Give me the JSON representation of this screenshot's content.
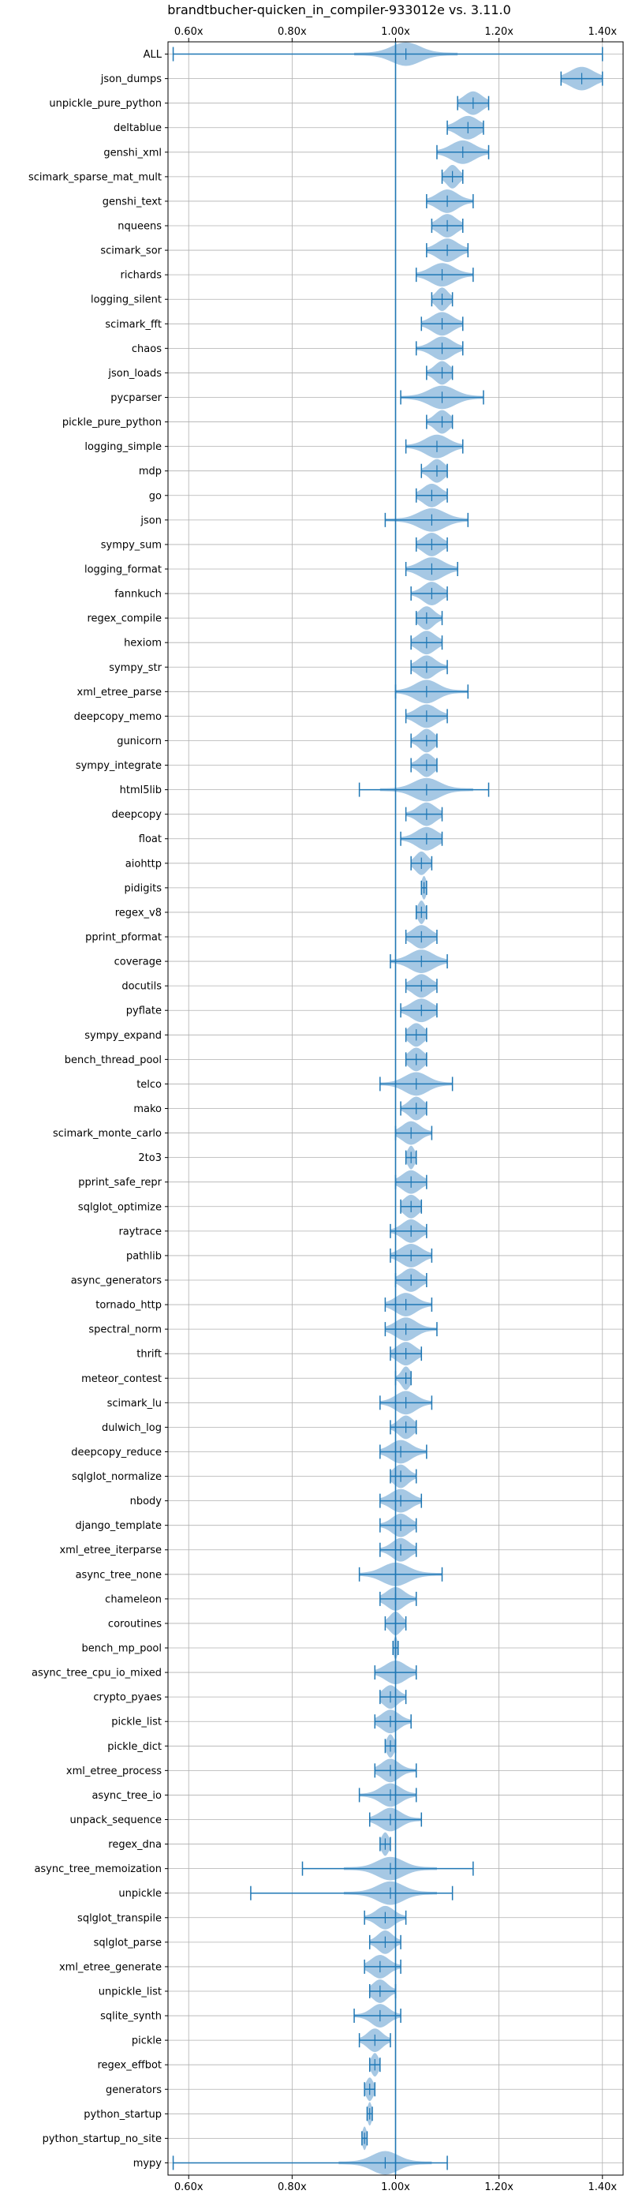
{
  "chart_data": {
    "type": "violin",
    "orientation": "horizontal",
    "title": "brandtbucher-quicken_in_compiler-933012e vs. 3.11.0",
    "x_axis_ticks": [
      "0.60x",
      "0.80x",
      "1.00x",
      "1.20x",
      "1.40x"
    ],
    "x_tick_values": [
      0.6,
      0.8,
      1.0,
      1.2,
      1.4
    ],
    "xlim": [
      0.56,
      1.44
    ],
    "reference_line": 1.0,
    "tick_position": "top-and-bottom",
    "grid": true,
    "colors": {
      "violin_fill": "#a6c8e4",
      "stroke": "#1f77b4",
      "grid": "#b0b0b0"
    },
    "benchmarks": [
      {
        "name": "ALL",
        "min": 0.57,
        "max": 1.4,
        "median": 1.02,
        "w": 0.05
      },
      {
        "name": "json_dumps",
        "min": 1.32,
        "max": 1.4,
        "median": 1.36,
        "w": 0.04
      },
      {
        "name": "unpickle_pure_python",
        "min": 1.12,
        "max": 1.18,
        "median": 1.15,
        "w": 0.03
      },
      {
        "name": "deltablue",
        "min": 1.1,
        "max": 1.17,
        "median": 1.14,
        "w": 0.035
      },
      {
        "name": "genshi_xml",
        "min": 1.08,
        "max": 1.18,
        "median": 1.13,
        "w": 0.04
      },
      {
        "name": "scimark_sparse_mat_mult",
        "min": 1.09,
        "max": 1.13,
        "median": 1.11,
        "w": 0.02
      },
      {
        "name": "genshi_text",
        "min": 1.06,
        "max": 1.15,
        "median": 1.1,
        "w": 0.035
      },
      {
        "name": "nqueens",
        "min": 1.07,
        "max": 1.13,
        "median": 1.1,
        "w": 0.03
      },
      {
        "name": "scimark_sor",
        "min": 1.06,
        "max": 1.14,
        "median": 1.1,
        "w": 0.035
      },
      {
        "name": "richards",
        "min": 1.04,
        "max": 1.15,
        "median": 1.09,
        "w": 0.04
      },
      {
        "name": "logging_silent",
        "min": 1.07,
        "max": 1.11,
        "median": 1.09,
        "w": 0.02
      },
      {
        "name": "scimark_fft",
        "min": 1.05,
        "max": 1.13,
        "median": 1.09,
        "w": 0.035
      },
      {
        "name": "chaos",
        "min": 1.04,
        "max": 1.13,
        "median": 1.09,
        "w": 0.035
      },
      {
        "name": "json_loads",
        "min": 1.06,
        "max": 1.11,
        "median": 1.09,
        "w": 0.025
      },
      {
        "name": "pycparser",
        "min": 1.01,
        "max": 1.17,
        "median": 1.09,
        "w": 0.045
      },
      {
        "name": "pickle_pure_python",
        "min": 1.06,
        "max": 1.11,
        "median": 1.09,
        "w": 0.025
      },
      {
        "name": "logging_simple",
        "min": 1.02,
        "max": 1.13,
        "median": 1.08,
        "w": 0.04
      },
      {
        "name": "mdp",
        "min": 1.05,
        "max": 1.1,
        "median": 1.08,
        "w": 0.025
      },
      {
        "name": "go",
        "min": 1.04,
        "max": 1.1,
        "median": 1.07,
        "w": 0.03
      },
      {
        "name": "json",
        "min": 0.98,
        "max": 1.14,
        "median": 1.07,
        "w": 0.045
      },
      {
        "name": "sympy_sum",
        "min": 1.04,
        "max": 1.1,
        "median": 1.07,
        "w": 0.03
      },
      {
        "name": "logging_format",
        "min": 1.02,
        "max": 1.12,
        "median": 1.07,
        "w": 0.04
      },
      {
        "name": "fannkuch",
        "min": 1.03,
        "max": 1.1,
        "median": 1.07,
        "w": 0.03
      },
      {
        "name": "regex_compile",
        "min": 1.04,
        "max": 1.09,
        "median": 1.06,
        "w": 0.025
      },
      {
        "name": "hexiom",
        "min": 1.03,
        "max": 1.09,
        "median": 1.06,
        "w": 0.03
      },
      {
        "name": "sympy_str",
        "min": 1.03,
        "max": 1.1,
        "median": 1.06,
        "w": 0.03
      },
      {
        "name": "xml_etree_parse",
        "min": 1.0,
        "max": 1.14,
        "median": 1.06,
        "w": 0.04
      },
      {
        "name": "deepcopy_memo",
        "min": 1.02,
        "max": 1.1,
        "median": 1.06,
        "w": 0.035
      },
      {
        "name": "gunicorn",
        "min": 1.03,
        "max": 1.08,
        "median": 1.06,
        "w": 0.025
      },
      {
        "name": "sympy_integrate",
        "min": 1.03,
        "max": 1.08,
        "median": 1.06,
        "w": 0.025
      },
      {
        "name": "html5lib",
        "min": 0.93,
        "max": 1.18,
        "median": 1.06,
        "w": 0.045
      },
      {
        "name": "deepcopy",
        "min": 1.02,
        "max": 1.09,
        "median": 1.06,
        "w": 0.03
      },
      {
        "name": "float",
        "min": 1.01,
        "max": 1.09,
        "median": 1.06,
        "w": 0.035
      },
      {
        "name": "aiohttp",
        "min": 1.03,
        "max": 1.07,
        "median": 1.05,
        "w": 0.02
      },
      {
        "name": "pidigits",
        "min": 1.05,
        "max": 1.06,
        "median": 1.055,
        "w": 0.008
      },
      {
        "name": "regex_v8",
        "min": 1.04,
        "max": 1.06,
        "median": 1.05,
        "w": 0.012
      },
      {
        "name": "pprint_pformat",
        "min": 1.02,
        "max": 1.08,
        "median": 1.05,
        "w": 0.03
      },
      {
        "name": "coverage",
        "min": 0.99,
        "max": 1.1,
        "median": 1.05,
        "w": 0.04
      },
      {
        "name": "docutils",
        "min": 1.02,
        "max": 1.08,
        "median": 1.05,
        "w": 0.03
      },
      {
        "name": "pyflate",
        "min": 1.01,
        "max": 1.08,
        "median": 1.05,
        "w": 0.035
      },
      {
        "name": "sympy_expand",
        "min": 1.02,
        "max": 1.06,
        "median": 1.04,
        "w": 0.025
      },
      {
        "name": "bench_thread_pool",
        "min": 1.02,
        "max": 1.06,
        "median": 1.04,
        "w": 0.025
      },
      {
        "name": "telco",
        "min": 0.97,
        "max": 1.11,
        "median": 1.04,
        "w": 0.04
      },
      {
        "name": "mako",
        "min": 1.01,
        "max": 1.06,
        "median": 1.04,
        "w": 0.025
      },
      {
        "name": "scimark_monte_carlo",
        "min": 1.0,
        "max": 1.07,
        "median": 1.03,
        "w": 0.03
      },
      {
        "name": "2to3",
        "min": 1.02,
        "max": 1.04,
        "median": 1.03,
        "w": 0.012
      },
      {
        "name": "pprint_safe_repr",
        "min": 1.0,
        "max": 1.06,
        "median": 1.03,
        "w": 0.03
      },
      {
        "name": "sqlglot_optimize",
        "min": 1.01,
        "max": 1.05,
        "median": 1.03,
        "w": 0.025
      },
      {
        "name": "raytrace",
        "min": 0.99,
        "max": 1.06,
        "median": 1.03,
        "w": 0.03
      },
      {
        "name": "pathlib",
        "min": 0.99,
        "max": 1.07,
        "median": 1.03,
        "w": 0.035
      },
      {
        "name": "async_generators",
        "min": 1.0,
        "max": 1.06,
        "median": 1.03,
        "w": 0.03
      },
      {
        "name": "tornado_http",
        "min": 0.98,
        "max": 1.07,
        "median": 1.02,
        "w": 0.035
      },
      {
        "name": "spectral_norm",
        "min": 0.98,
        "max": 1.08,
        "median": 1.02,
        "w": 0.035
      },
      {
        "name": "thrift",
        "min": 0.99,
        "max": 1.05,
        "median": 1.02,
        "w": 0.03
      },
      {
        "name": "meteor_contest",
        "min": 1.0,
        "max": 1.03,
        "median": 1.02,
        "w": 0.015
      },
      {
        "name": "scimark_lu",
        "min": 0.97,
        "max": 1.07,
        "median": 1.02,
        "w": 0.035
      },
      {
        "name": "dulwich_log",
        "min": 0.99,
        "max": 1.04,
        "median": 1.02,
        "w": 0.025
      },
      {
        "name": "deepcopy_reduce",
        "min": 0.97,
        "max": 1.06,
        "median": 1.01,
        "w": 0.035
      },
      {
        "name": "sqlglot_normalize",
        "min": 0.99,
        "max": 1.04,
        "median": 1.01,
        "w": 0.025
      },
      {
        "name": "nbody",
        "min": 0.97,
        "max": 1.05,
        "median": 1.01,
        "w": 0.035
      },
      {
        "name": "django_template",
        "min": 0.97,
        "max": 1.04,
        "median": 1.01,
        "w": 0.03
      },
      {
        "name": "xml_etree_iterparse",
        "min": 0.97,
        "max": 1.04,
        "median": 1.01,
        "w": 0.03
      },
      {
        "name": "async_tree_none",
        "min": 0.93,
        "max": 1.09,
        "median": 1.0,
        "w": 0.045
      },
      {
        "name": "chameleon",
        "min": 0.97,
        "max": 1.04,
        "median": 1.0,
        "w": 0.03
      },
      {
        "name": "coroutines",
        "min": 0.98,
        "max": 1.02,
        "median": 1.0,
        "w": 0.02
      },
      {
        "name": "bench_mp_pool",
        "min": 0.995,
        "max": 1.005,
        "median": 1.0,
        "w": 0.006
      },
      {
        "name": "async_tree_cpu_io_mixed",
        "min": 0.96,
        "max": 1.04,
        "median": 1.0,
        "w": 0.035
      },
      {
        "name": "crypto_pyaes",
        "min": 0.97,
        "max": 1.02,
        "median": 0.99,
        "w": 0.025
      },
      {
        "name": "pickle_list",
        "min": 0.96,
        "max": 1.03,
        "median": 0.99,
        "w": 0.03
      },
      {
        "name": "pickle_dict",
        "min": 0.98,
        "max": 1.0,
        "median": 0.99,
        "w": 0.012
      },
      {
        "name": "xml_etree_process",
        "min": 0.96,
        "max": 1.04,
        "median": 0.99,
        "w": 0.03
      },
      {
        "name": "async_tree_io",
        "min": 0.93,
        "max": 1.04,
        "median": 0.99,
        "w": 0.035
      },
      {
        "name": "unpack_sequence",
        "min": 0.95,
        "max": 1.05,
        "median": 0.99,
        "w": 0.035
      },
      {
        "name": "regex_dna",
        "min": 0.97,
        "max": 0.99,
        "median": 0.98,
        "w": 0.012
      },
      {
        "name": "async_tree_memoization",
        "min": 0.82,
        "max": 1.15,
        "median": 0.99,
        "w": 0.045
      },
      {
        "name": "unpickle",
        "min": 0.72,
        "max": 1.11,
        "median": 0.99,
        "w": 0.045
      },
      {
        "name": "sqlglot_transpile",
        "min": 0.94,
        "max": 1.02,
        "median": 0.98,
        "w": 0.03
      },
      {
        "name": "sqlglot_parse",
        "min": 0.95,
        "max": 1.01,
        "median": 0.98,
        "w": 0.025
      },
      {
        "name": "xml_etree_generate",
        "min": 0.94,
        "max": 1.01,
        "median": 0.97,
        "w": 0.03
      },
      {
        "name": "unpickle_list",
        "min": 0.95,
        "max": 1.0,
        "median": 0.97,
        "w": 0.025
      },
      {
        "name": "sqlite_synth",
        "min": 0.92,
        "max": 1.01,
        "median": 0.97,
        "w": 0.03
      },
      {
        "name": "pickle",
        "min": 0.93,
        "max": 0.99,
        "median": 0.96,
        "w": 0.025
      },
      {
        "name": "regex_effbot",
        "min": 0.95,
        "max": 0.97,
        "median": 0.96,
        "w": 0.012
      },
      {
        "name": "generators",
        "min": 0.94,
        "max": 0.96,
        "median": 0.95,
        "w": 0.012
      },
      {
        "name": "python_startup",
        "min": 0.945,
        "max": 0.955,
        "median": 0.95,
        "w": 0.007
      },
      {
        "name": "python_startup_no_site",
        "min": 0.935,
        "max": 0.945,
        "median": 0.94,
        "w": 0.007
      },
      {
        "name": "mypy",
        "min": 0.57,
        "max": 1.1,
        "median": 0.98,
        "w": 0.045
      }
    ]
  }
}
